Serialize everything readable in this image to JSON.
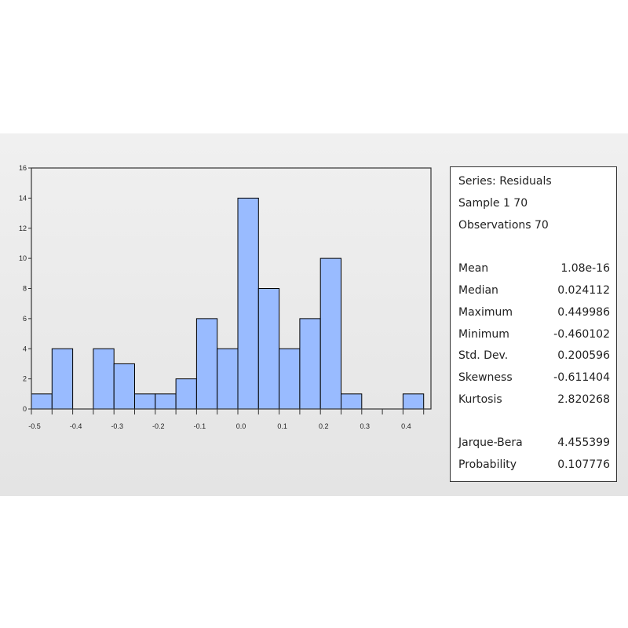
{
  "chart_data": {
    "type": "bar",
    "title": "",
    "xlabel": "",
    "ylabel": "",
    "bin_width": 0.05,
    "bins": [
      {
        "start": -0.5,
        "count": 1
      },
      {
        "start": -0.45,
        "count": 4
      },
      {
        "start": -0.4,
        "count": 0
      },
      {
        "start": -0.35,
        "count": 4
      },
      {
        "start": -0.3,
        "count": 3
      },
      {
        "start": -0.25,
        "count": 1
      },
      {
        "start": -0.2,
        "count": 1
      },
      {
        "start": -0.15,
        "count": 2
      },
      {
        "start": -0.1,
        "count": 6
      },
      {
        "start": -0.05,
        "count": 4
      },
      {
        "start": 0.0,
        "count": 14
      },
      {
        "start": 0.05,
        "count": 8
      },
      {
        "start": 0.1,
        "count": 4
      },
      {
        "start": 0.15,
        "count": 6
      },
      {
        "start": 0.2,
        "count": 10
      },
      {
        "start": 0.25,
        "count": 1
      },
      {
        "start": 0.3,
        "count": 0
      },
      {
        "start": 0.35,
        "count": 0
      },
      {
        "start": 0.4,
        "count": 1
      }
    ],
    "xlim": [
      -0.5,
      0.45
    ],
    "ylim": [
      0,
      16
    ],
    "yticks": [
      0,
      2,
      4,
      6,
      8,
      10,
      12,
      14,
      16
    ],
    "ytick_labels": [
      "0",
      "2",
      "4",
      "6",
      "8",
      "10",
      "12",
      "14",
      "16"
    ],
    "xticks": [
      -0.5,
      -0.4,
      -0.3,
      -0.2,
      -0.1,
      0.0,
      0.1,
      0.2,
      0.3,
      0.4
    ],
    "xtick_labels": [
      "-0.5",
      "-0.4",
      "-0.3",
      "-0.2",
      "-0.1",
      "0.0",
      "0.1",
      "0.2",
      "0.3",
      "0.4"
    ],
    "bar_color": "#99bbff",
    "bar_edge_color": "#000000",
    "grid": false
  },
  "stats": {
    "series": "Series: Residuals",
    "sample": "Sample 1 70",
    "observations": "Observations 70",
    "rows": [
      {
        "label": "Mean",
        "value": "1.08e-16"
      },
      {
        "label": "Median",
        "value": "0.024112"
      },
      {
        "label": "Maximum",
        "value": "0.449986"
      },
      {
        "label": "Minimum",
        "value": "-0.460102"
      },
      {
        "label": "Std. Dev.",
        "value": "0.200596"
      },
      {
        "label": "Skewness",
        "value": "-0.611404"
      },
      {
        "label": "Kurtosis",
        "value": "2.820268"
      }
    ],
    "test_rows": [
      {
        "label": "Jarque-Bera",
        "value": "4.455399"
      },
      {
        "label": "Probability",
        "value": "0.107776"
      }
    ]
  }
}
